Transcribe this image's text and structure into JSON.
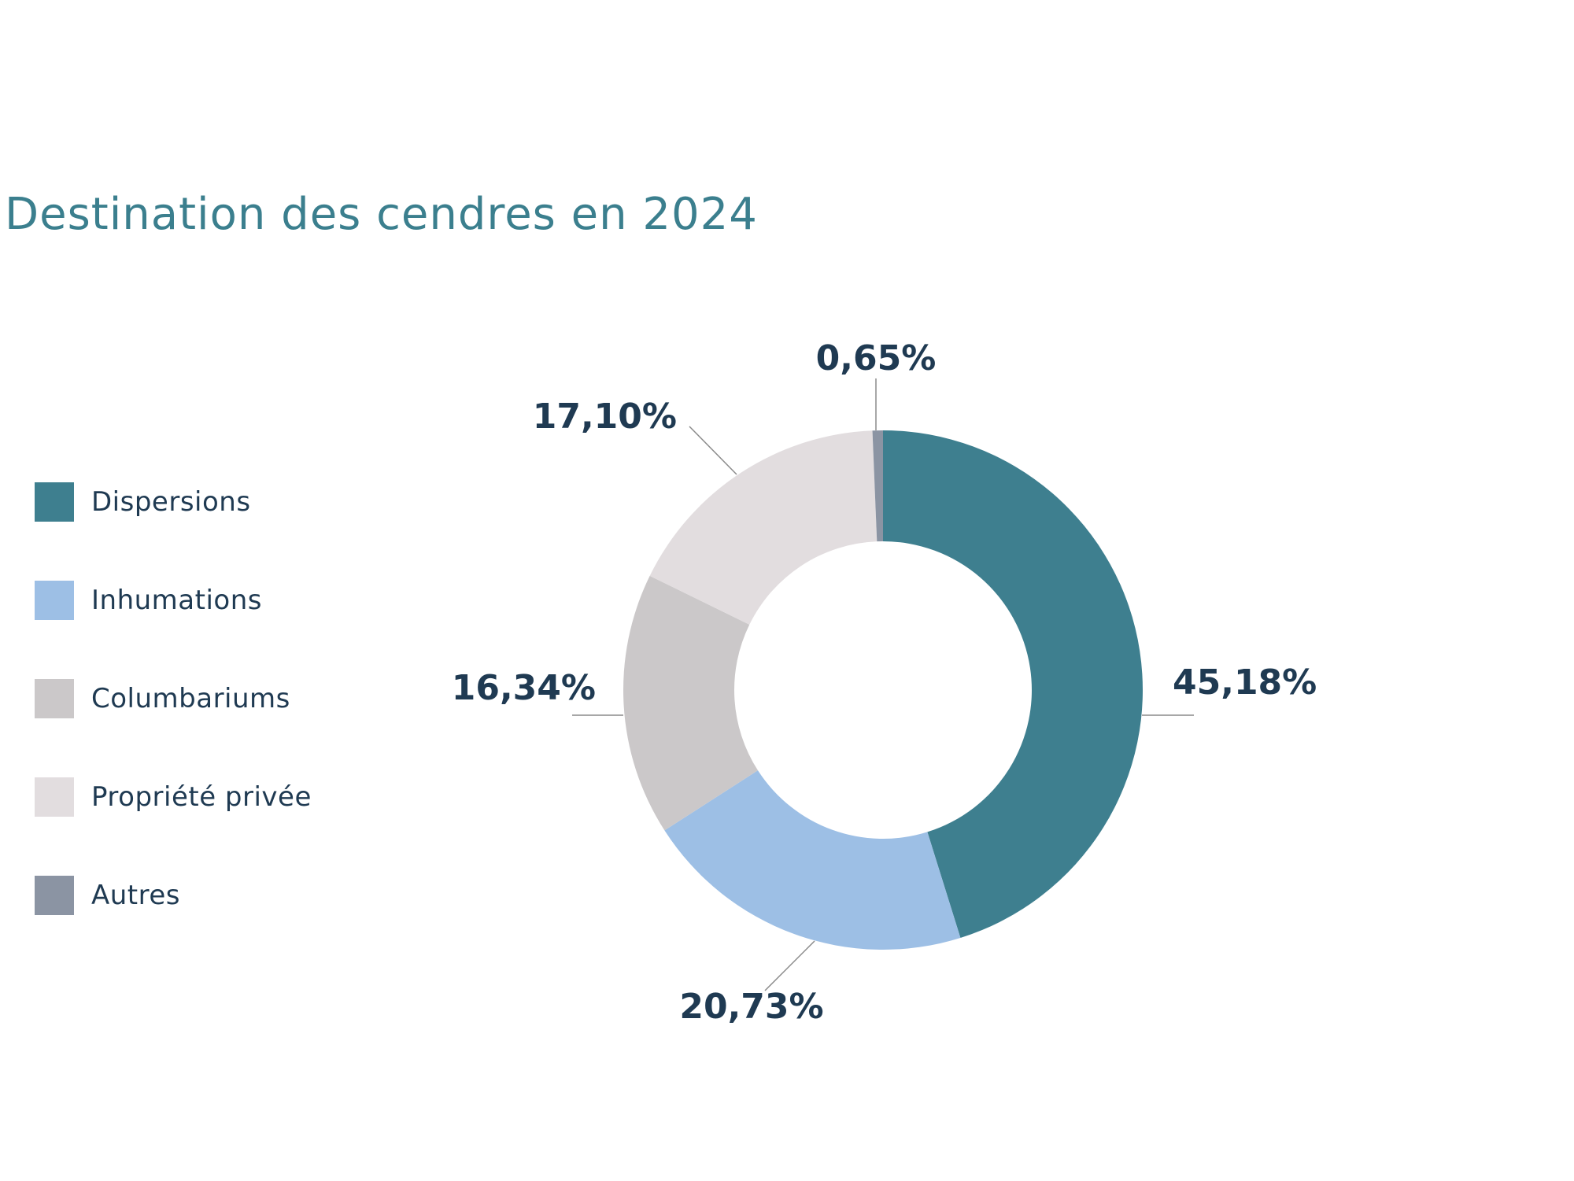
{
  "chart_data": {
    "type": "pie",
    "variant": "donut",
    "title": "Destination des cendres en 2024",
    "start_angle": "top, clockwise",
    "legend_position": "left",
    "categories": [
      "Dispersions",
      "Inhumations",
      "Columbariums",
      "Propriété privée",
      "Autres"
    ],
    "values": [
      45.18,
      20.73,
      16.34,
      17.1,
      0.65
    ],
    "data_labels": [
      "45,18%",
      "20,73%",
      "16,34%",
      "17,10%",
      "0,65%"
    ],
    "colors": [
      "#3e7f8f",
      "#9dbfe5",
      "#cbc8c9",
      "#e2dddf",
      "#8b94a3"
    ]
  }
}
